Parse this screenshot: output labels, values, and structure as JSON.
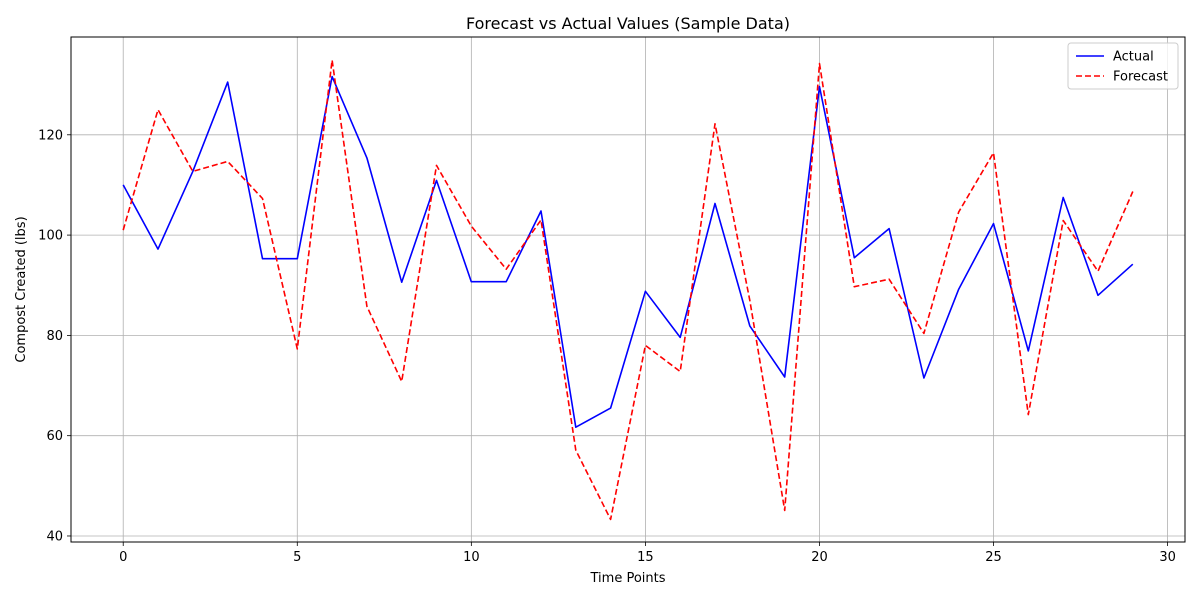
{
  "chart_data": {
    "type": "line",
    "title": "Forecast vs Actual Values (Sample Data)",
    "xlabel": "Time Points",
    "ylabel": "Compost Created (lbs)",
    "xlim": [
      -1.5,
      30.5
    ],
    "ylim": [
      38.8,
      139.5
    ],
    "xticks": [
      0,
      5,
      10,
      15,
      20,
      25,
      30
    ],
    "yticks": [
      40,
      60,
      80,
      100,
      120
    ],
    "grid": true,
    "legend_position": "top-right",
    "x": [
      0,
      1,
      2,
      3,
      4,
      5,
      6,
      7,
      8,
      9,
      10,
      11,
      12,
      13,
      14,
      15,
      16,
      17,
      18,
      19,
      20,
      21,
      22,
      23,
      24,
      25,
      26,
      27,
      28,
      29
    ],
    "series": [
      {
        "name": "Actual",
        "color": "#0000ff",
        "style": "solid",
        "values": [
          110.0,
          97.2,
          112.7,
          130.5,
          95.3,
          95.3,
          131.6,
          115.4,
          90.6,
          110.9,
          90.7,
          90.7,
          104.8,
          61.7,
          65.5,
          88.8,
          79.6,
          106.3,
          81.9,
          71.7,
          129.6,
          95.5,
          101.3,
          71.5,
          89.2,
          102.3,
          76.9,
          107.5,
          88.0,
          94.2
        ]
      },
      {
        "name": "Forecast",
        "color": "#ff0000",
        "style": "dashed",
        "values": [
          101.0,
          125.0,
          112.7,
          114.7,
          107.3,
          77.3,
          134.9,
          85.8,
          70.8,
          113.9,
          101.8,
          93.2,
          103.0,
          57.1,
          43.3,
          78.0,
          72.8,
          122.2,
          87.0,
          45.1,
          134.2,
          89.7,
          91.2,
          80.4,
          104.6,
          116.4,
          64.2,
          102.9,
          92.8,
          108.7
        ]
      }
    ]
  }
}
